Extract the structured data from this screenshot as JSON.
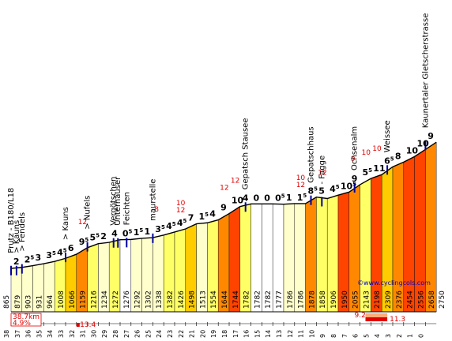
{
  "colors": {
    "very_easy": "#ffffcc",
    "easy": "#ffff66",
    "flat": "#ffffff",
    "medium": "#ffcc00",
    "hard": "#ff8800",
    "very_hard": "#ff4400",
    "outline": "#000000",
    "marker": "#000099",
    "red": "#e00000",
    "link": "#0000cc"
  },
  "chart_data": {
    "type": "area",
    "start_altitude": "865",
    "end_altitude": "2750",
    "x_ticks": [
      "38",
      "37",
      "36",
      "35",
      "34",
      "33",
      "32",
      "31",
      "30",
      "29",
      "28",
      "27",
      "26",
      "25",
      "24",
      "23",
      "22",
      "21",
      "20",
      "19",
      "18",
      "17",
      "16",
      "15",
      "14",
      "13",
      "12",
      "11",
      "10",
      "9",
      "8",
      "7",
      "6",
      "5",
      "4",
      "3",
      "2",
      "1",
      "0"
    ],
    "segments": [
      {
        "alt": "879",
        "grad": "2",
        "sup": "",
        "color": "very_easy"
      },
      {
        "alt": "903",
        "grad": "2",
        "sup": "5",
        "color": "very_easy"
      },
      {
        "alt": "931",
        "grad": "3",
        "sup": "",
        "color": "very_easy"
      },
      {
        "alt": "964",
        "grad": "3",
        "sup": "5",
        "color": "very_easy"
      },
      {
        "alt": "1008",
        "grad": "4",
        "sup": "5",
        "color": "easy"
      },
      {
        "alt": "1066",
        "grad": "6",
        "sup": "",
        "color": "medium"
      },
      {
        "alt": "1159",
        "grad": "9",
        "sup": "5",
        "color": "hard"
      },
      {
        "alt": "1216",
        "grad": "5",
        "sup": "5",
        "color": "easy"
      },
      {
        "alt": "1234",
        "grad": "2",
        "sup": "",
        "color": "very_easy"
      },
      {
        "alt": "1272",
        "grad": "4",
        "sup": "",
        "color": "easy"
      },
      {
        "alt": "1276",
        "grad": "0",
        "sup": "5",
        "color": "flat"
      },
      {
        "alt": "1292",
        "grad": "1",
        "sup": "5",
        "color": "very_easy"
      },
      {
        "alt": "1302",
        "grad": "1",
        "sup": "",
        "color": "very_easy"
      },
      {
        "alt": "1338",
        "grad": "3",
        "sup": "5",
        "color": "very_easy"
      },
      {
        "alt": "1382",
        "grad": "4",
        "sup": "5",
        "color": "easy"
      },
      {
        "alt": "1426",
        "grad": "4",
        "sup": "5",
        "color": "easy"
      },
      {
        "alt": "1498",
        "grad": "7",
        "sup": "",
        "color": "medium"
      },
      {
        "alt": "1513",
        "grad": "1",
        "sup": "5",
        "color": "very_easy"
      },
      {
        "alt": "1554",
        "grad": "4",
        "sup": "",
        "color": "easy"
      },
      {
        "alt": "1644",
        "grad": "9",
        "sup": "",
        "color": "hard"
      },
      {
        "alt": "1744",
        "grad": "10",
        "sup": "",
        "color": "very_hard"
      },
      {
        "alt": "1782",
        "grad": "4",
        "sup": "",
        "color": "easy"
      },
      {
        "alt": "1782",
        "grad": "0",
        "sup": "",
        "color": "flat"
      },
      {
        "alt": "1782",
        "grad": "0",
        "sup": "",
        "color": "flat"
      },
      {
        "alt": "1777",
        "grad": "0",
        "sup": "5",
        "color": "flat"
      },
      {
        "alt": "1786",
        "grad": "1",
        "sup": "",
        "color": "very_easy"
      },
      {
        "alt": "1786",
        "grad": "1",
        "sup": "5",
        "color": "very_easy"
      },
      {
        "alt": "1878",
        "grad": "8",
        "sup": "5",
        "color": "hard"
      },
      {
        "alt": "1858",
        "grad": "5",
        "sup": "",
        "color": "easy"
      },
      {
        "alt": "1906",
        "grad": "4",
        "sup": "5",
        "color": "easy"
      },
      {
        "alt": "1950",
        "grad": "10",
        "sup": "5",
        "color": "very_hard"
      },
      {
        "alt": "2055",
        "grad": "9",
        "sup": "",
        "color": "hard"
      },
      {
        "alt": "2143",
        "grad": "5",
        "sup": "5",
        "color": "easy"
      },
      {
        "alt": "2198",
        "grad": "11",
        "sup": "",
        "color": "very_hard"
      },
      {
        "alt": "2309",
        "grad": "6",
        "sup": "5",
        "color": "medium"
      },
      {
        "alt": "2376",
        "grad": "8",
        "sup": "",
        "color": "hard"
      },
      {
        "alt": "2454",
        "grad": "10",
        "sup": "",
        "color": "very_hard"
      },
      {
        "alt": "2556",
        "grad": "10",
        "sup": "",
        "color": "very_hard"
      },
      {
        "alt": "2658",
        "grad": "9",
        "sup": "",
        "color": "hard"
      }
    ],
    "max_gradients": [
      {
        "km": "31.5",
        "value": "12"
      },
      {
        "km": "24.5",
        "value": "8"
      },
      {
        "km": "22.5",
        "value": "10"
      },
      {
        "km": "22.5",
        "value": "12",
        "row": 2
      },
      {
        "km": "18.5",
        "value": "12"
      },
      {
        "km": "17.5",
        "value": "12"
      },
      {
        "km": "11.5",
        "value": "10"
      },
      {
        "km": "11.5",
        "value": "12",
        "row": 2
      },
      {
        "km": "9.5",
        "value": "12"
      },
      {
        "km": "6.5",
        "value": "9"
      },
      {
        "km": "5.5",
        "value": "10"
      },
      {
        "km": "4.5",
        "value": "10"
      }
    ],
    "places": [
      {
        "km": "38",
        "label": "Prutz - B180/L18"
      },
      {
        "km": "37.5",
        "label": "> Kauns"
      },
      {
        "km": "37",
        "label": "> Fendels"
      },
      {
        "km": "33",
        "label": "> Kauns"
      },
      {
        "km": "31",
        "label": "> Nufels"
      },
      {
        "km": "28.6",
        "label": "Vergötschen"
      },
      {
        "km": "28.2",
        "label": "Unterhäuser"
      },
      {
        "km": "27.4",
        "label": "Feichten"
      },
      {
        "km": "25",
        "label": "maurstelle"
      },
      {
        "km": "16.5",
        "label": "Gepatsch Stausee"
      },
      {
        "km": "10.5",
        "label": "Gepatschhaus"
      },
      {
        "km": "9.5",
        "label": "- Fagge"
      },
      {
        "km": "6.5",
        "label": "Ochsenalm"
      },
      {
        "km": "3.5",
        "label": "Weissee"
      },
      {
        "km": "0",
        "label": "Kaunertaler Gletscherstrasse"
      }
    ],
    "summary": {
      "distance": "38.7km",
      "average": "4.9%"
    },
    "max_markers": [
      {
        "from_km": "32",
        "to_km": "31.9",
        "label": "13.4"
      },
      {
        "from_km": "5.5",
        "to_km": "3.5",
        "label": "9.2"
      },
      {
        "from_km": "5.5",
        "to_km": "3.5",
        "label": "11.3"
      }
    ],
    "website": "©www.cyclingcols.com"
  }
}
